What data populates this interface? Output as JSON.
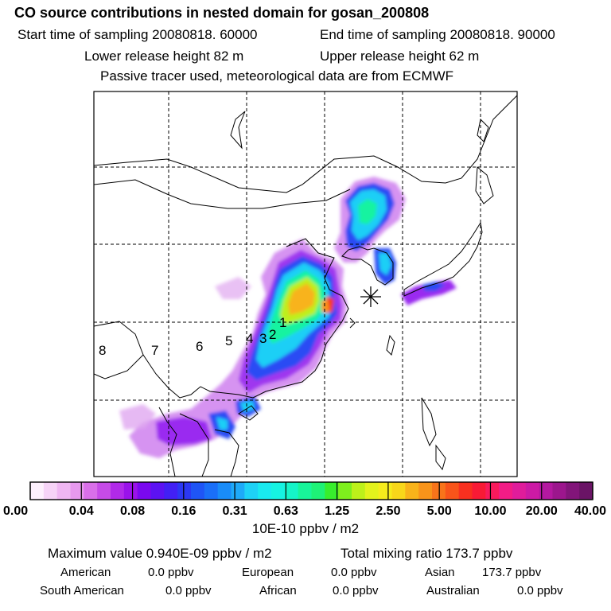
{
  "header": {
    "title": "CO  source contributions in nested domain for gosan_200808",
    "start_time": "Start time of sampling 20080818. 60000",
    "end_time": "End time of sampling 20080818. 90000",
    "lower_height": "Lower release height   82 m",
    "upper_height": "Upper release height   62 m",
    "note": "Passive tracer used, meteorological data are from ECMWF"
  },
  "map": {
    "source_labels": [
      "1",
      "2",
      "3",
      "4",
      "5",
      "6",
      "7",
      "8"
    ],
    "receptor_marker": "asterisk-icon"
  },
  "colorbar": {
    "ticks": [
      "0.00",
      "0.04",
      "0.08",
      "0.16",
      "0.31",
      "0.63",
      "1.25",
      "2.50",
      "5.00",
      "10.00",
      "20.00",
      "40.00"
    ],
    "unit": "10E-10 ppbv / m2",
    "colors": [
      "#fdf0fd",
      "#f6d3f7",
      "#efb6f2",
      "#e799ee",
      "#d96fe9",
      "#c64be8",
      "#b12ae9",
      "#9a12ea",
      "#7a08ef",
      "#5c12f2",
      "#4220f4",
      "#2c38f4",
      "#1f55f6",
      "#1a6ff8",
      "#198cf8",
      "#1eaaf8",
      "#1ed2f6",
      "#19eaf0",
      "#16f3e2",
      "#15f5c8",
      "#18f59a",
      "#1ef277",
      "#38ee2d",
      "#7eef1d",
      "#bdf01a",
      "#e3f21c",
      "#f6ec1c",
      "#f8d71a",
      "#f8b31a",
      "#f8941a",
      "#f8741a",
      "#f8541a",
      "#f8301f",
      "#f81a35",
      "#f81a5c",
      "#f21c86",
      "#e01c9b",
      "#cc1aa5",
      "#b418a0",
      "#9c168d",
      "#82157a",
      "#6a1466"
    ]
  },
  "stats": {
    "maximum": "Maximum value  0.940E-09 ppbv / m2",
    "total": "Total mixing ratio      173.7 ppbv",
    "american_label": "American",
    "american_value": "0.0 ppbv",
    "european_label": "European",
    "european_value": "0.0 ppbv",
    "asian_label": "Asian",
    "asian_value": "173.7 ppbv",
    "south_american_label": "South American",
    "south_american_value": "0.0 ppbv",
    "african_label": "African",
    "african_value": "0.0 ppbv",
    "australian_label": "Australian",
    "australian_value": "0.0 ppbv"
  }
}
